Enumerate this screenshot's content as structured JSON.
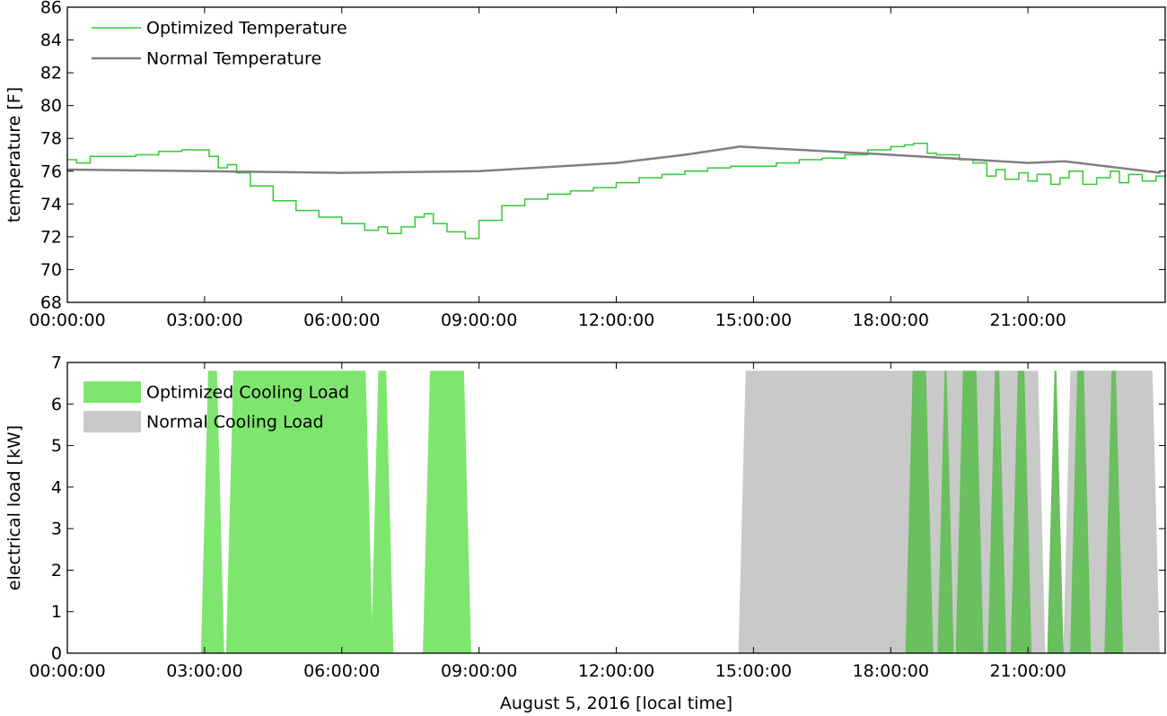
{
  "chart_data": [
    {
      "type": "line",
      "ylabel": "temperature [F]",
      "xlabel": "",
      "x_unit": "hours",
      "xlim": [
        0,
        24
      ],
      "ylim": [
        68,
        86
      ],
      "x_ticks": [
        {
          "value": 0,
          "label": "00:00:00"
        },
        {
          "value": 3,
          "label": "03:00:00"
        },
        {
          "value": 6,
          "label": "06:00:00"
        },
        {
          "value": 9,
          "label": "09:00:00"
        },
        {
          "value": 12,
          "label": "12:00:00"
        },
        {
          "value": 15,
          "label": "15:00:00"
        },
        {
          "value": 18,
          "label": "18:00:00"
        },
        {
          "value": 21,
          "label": "21:00:00"
        }
      ],
      "y_ticks": [
        "68",
        "70",
        "72",
        "74",
        "76",
        "78",
        "80",
        "82",
        "84",
        "86"
      ],
      "legend_position": "top-left",
      "grid": false,
      "series": [
        {
          "name": "Optimized Temperature",
          "color": "#33cc33",
          "x": [
            0,
            0.2,
            0.5,
            1.0,
            1.5,
            2.0,
            2.5,
            3.0,
            3.1,
            3.3,
            3.5,
            3.7,
            4.0,
            4.5,
            5.0,
            5.5,
            6.0,
            6.5,
            6.8,
            7.0,
            7.3,
            7.6,
            7.8,
            8.0,
            8.3,
            8.7,
            9.0,
            9.5,
            10.0,
            10.5,
            11.0,
            11.5,
            12.0,
            12.5,
            13.0,
            13.5,
            14.0,
            14.5,
            15.0,
            15.5,
            16.0,
            16.5,
            17.0,
            17.5,
            18.0,
            18.3,
            18.5,
            18.8,
            19.0,
            19.5,
            19.8,
            20.1,
            20.3,
            20.5,
            20.8,
            21.0,
            21.2,
            21.5,
            21.7,
            21.9,
            22.2,
            22.5,
            22.8,
            23.0,
            23.2,
            23.5,
            23.8,
            24.0
          ],
          "y": [
            76.7,
            76.5,
            76.9,
            76.9,
            77.0,
            77.2,
            77.3,
            77.3,
            76.9,
            76.2,
            76.4,
            75.9,
            75.1,
            74.2,
            73.6,
            73.2,
            72.8,
            72.4,
            72.6,
            72.2,
            72.6,
            73.2,
            73.4,
            72.8,
            72.3,
            71.9,
            73.0,
            73.9,
            74.3,
            74.6,
            74.8,
            75.0,
            75.3,
            75.6,
            75.8,
            76.0,
            76.2,
            76.3,
            76.3,
            76.5,
            76.7,
            76.8,
            77.0,
            77.3,
            77.5,
            77.6,
            77.7,
            77.1,
            77.0,
            76.7,
            76.5,
            75.7,
            76.1,
            75.5,
            75.9,
            75.4,
            75.8,
            75.2,
            75.6,
            76.0,
            75.2,
            75.6,
            76.0,
            75.3,
            75.8,
            75.4,
            75.7,
            75.8
          ]
        },
        {
          "name": "Normal Temperature",
          "color": "#808080",
          "x": [
            0,
            3,
            6,
            9,
            12,
            13.5,
            14.7,
            18,
            21,
            21.8,
            23.9
          ],
          "y": [
            76.1,
            76.0,
            75.9,
            76.0,
            76.5,
            77.0,
            77.5,
            77.0,
            76.5,
            76.6,
            75.9
          ]
        }
      ]
    },
    {
      "type": "area",
      "ylabel": "electrical load [kW]",
      "xlabel": "August 5, 2016 [local time]",
      "x_unit": "hours",
      "xlim": [
        0,
        24
      ],
      "ylim": [
        0,
        7
      ],
      "x_ticks": [
        {
          "value": 0,
          "label": "00:00:00"
        },
        {
          "value": 3,
          "label": "03:00:00"
        },
        {
          "value": 6,
          "label": "06:00:00"
        },
        {
          "value": 9,
          "label": "09:00:00"
        },
        {
          "value": 12,
          "label": "12:00:00"
        },
        {
          "value": 15,
          "label": "15:00:00"
        },
        {
          "value": 18,
          "label": "18:00:00"
        },
        {
          "value": 21,
          "label": "21:00:00"
        }
      ],
      "y_ticks": [
        "0",
        "1",
        "2",
        "3",
        "4",
        "5",
        "6",
        "7"
      ],
      "legend_position": "top-left",
      "grid": false,
      "on_level": 6.8,
      "overlap_color": "#6abf5e",
      "series": [
        {
          "name": "Optimized Cooling Load",
          "color": "#7ee66e",
          "intervals": [
            [
              3.0,
              3.35
            ],
            [
              3.55,
              6.6
            ],
            [
              6.72,
              7.05
            ],
            [
              7.85,
              8.75
            ],
            [
              18.4,
              18.85
            ],
            [
              19.1,
              19.3
            ],
            [
              19.5,
              19.95
            ],
            [
              20.2,
              20.45
            ],
            [
              20.7,
              21.0
            ],
            [
              21.5,
              21.7
            ],
            [
              22.0,
              22.3
            ],
            [
              22.75,
              23.0
            ]
          ]
        },
        {
          "name": "Normal Cooling Load",
          "color": "#c9c9c9",
          "intervals": [
            [
              14.75,
              21.3
            ],
            [
              21.85,
              23.8
            ]
          ]
        }
      ]
    }
  ]
}
